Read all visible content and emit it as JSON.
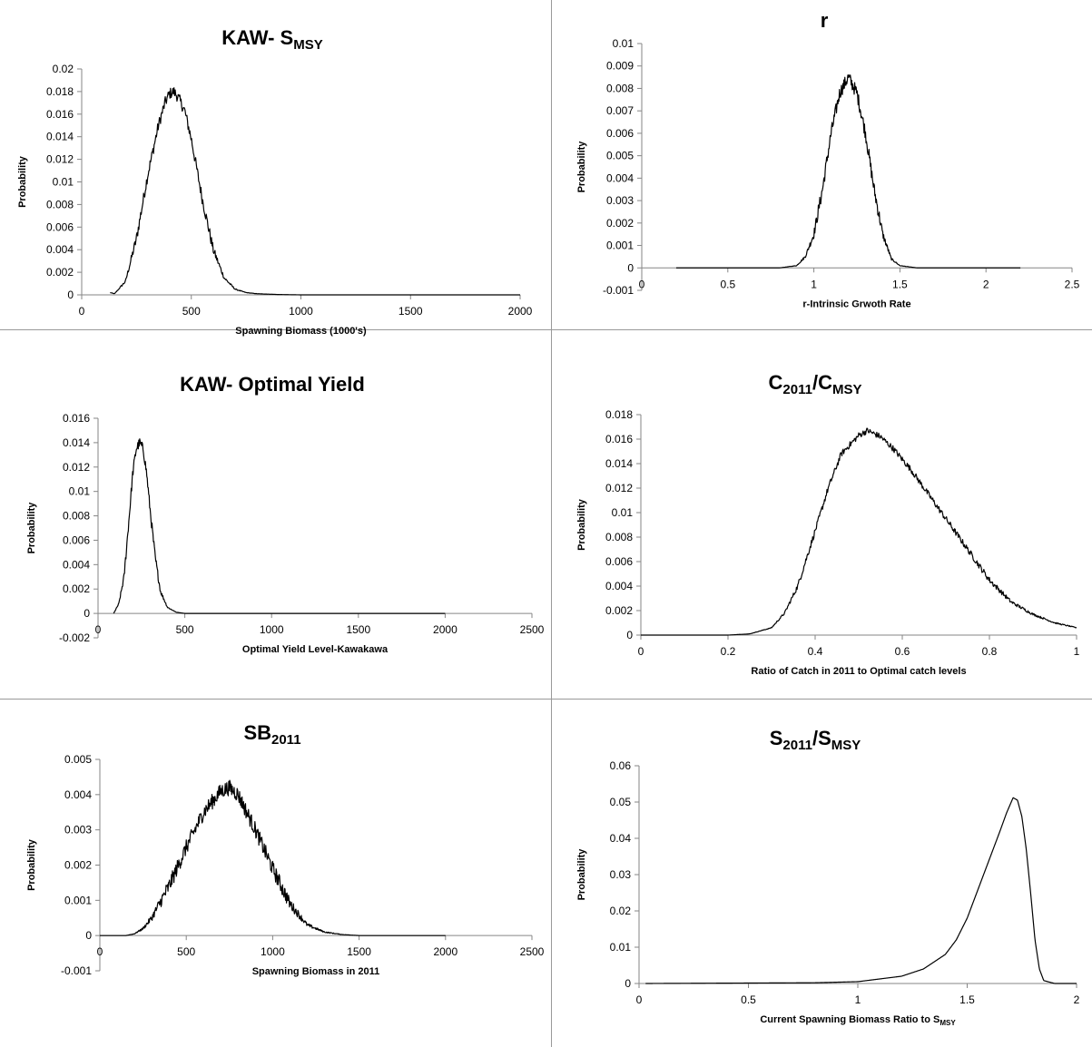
{
  "chart_data": [
    {
      "type": "line",
      "title": "KAW- S",
      "title_sub": "MSY",
      "xlabel": "Spawning Biomass (1000's)",
      "xlabel_sub": "",
      "ylabel": "Probability",
      "xlim": [
        0,
        2000
      ],
      "ylim": [
        0,
        0.02
      ],
      "xticks": [
        0,
        500,
        1000,
        1500,
        2000
      ],
      "yticks": [
        0,
        0.002,
        0.004,
        0.006,
        0.008,
        0.01,
        0.012,
        0.014,
        0.016,
        0.018,
        0.02
      ],
      "xtick_labels": [
        "0",
        "500",
        "1000",
        "1500",
        "2000"
      ],
      "ytick_labels": [
        "0",
        "0.002",
        "0.004",
        "0.006",
        "0.008",
        "0.01",
        "0.012",
        "0.014",
        "0.016",
        "0.018",
        "0.02"
      ],
      "noise": 0.0005,
      "series": [
        {
          "x": [
            130,
            150,
            200,
            250,
            300,
            350,
            380,
            400,
            420,
            440,
            470,
            500,
            550,
            600,
            650,
            700,
            750,
            800,
            900,
            1000,
            1200,
            1500,
            2000
          ],
          "y": [
            0.0002,
            0.0001,
            0.0012,
            0.005,
            0.0105,
            0.015,
            0.017,
            0.0178,
            0.018,
            0.0175,
            0.0163,
            0.0138,
            0.0085,
            0.004,
            0.0015,
            0.0005,
            0.0002,
            0.0001,
            3e-05,
            0,
            0,
            0,
            0
          ]
        }
      ]
    },
    {
      "type": "line",
      "title": "r",
      "title_sub": "",
      "xlabel": "r-Intrinsic Grwoth Rate",
      "xlabel_sub": "",
      "ylabel": "Probability",
      "xlim": [
        0,
        2.5
      ],
      "ylim": [
        -0.001,
        0.01
      ],
      "xticks": [
        0,
        0.5,
        1,
        1.5,
        2,
        2.5
      ],
      "yticks": [
        -0.001,
        0,
        0.001,
        0.002,
        0.003,
        0.004,
        0.005,
        0.006,
        0.007,
        0.008,
        0.009,
        0.01
      ],
      "xtick_labels": [
        "0",
        "0.5",
        "1",
        "1.5",
        "2",
        "2.5"
      ],
      "ytick_labels": [
        "-0.001",
        "0",
        "0.001",
        "0.002",
        "0.003",
        "0.004",
        "0.005",
        "0.006",
        "0.007",
        "0.008",
        "0.009",
        "0.01"
      ],
      "noise": 0.0003,
      "series": [
        {
          "x": [
            0.2,
            0.8,
            0.9,
            0.95,
            1.0,
            1.05,
            1.1,
            1.15,
            1.2,
            1.25,
            1.3,
            1.35,
            1.4,
            1.45,
            1.5,
            1.6,
            2.2
          ],
          "y": [
            0,
            0,
            0.0001,
            0.0005,
            0.0015,
            0.0035,
            0.006,
            0.0078,
            0.0085,
            0.0078,
            0.006,
            0.0035,
            0.0015,
            0.0004,
            0.0001,
            0,
            0
          ]
        }
      ]
    },
    {
      "type": "line",
      "title": "KAW- Optimal Yield",
      "title_sub": "",
      "xlabel": "Optimal Yield Level-Kawakawa",
      "xlabel_sub": "",
      "ylabel": "Probability",
      "xlim": [
        0,
        2500
      ],
      "ylim": [
        -0.002,
        0.016
      ],
      "xticks": [
        0,
        500,
        1000,
        1500,
        2000,
        2500
      ],
      "yticks": [
        -0.002,
        0,
        0.002,
        0.004,
        0.006,
        0.008,
        0.01,
        0.012,
        0.014,
        0.016
      ],
      "xtick_labels": [
        "0",
        "500",
        "1000",
        "1500",
        "2000",
        "2500"
      ],
      "ytick_labels": [
        "-0.002",
        "0",
        "0.002",
        "0.004",
        "0.006",
        "0.008",
        "0.01",
        "0.012",
        "0.014",
        "0.016"
      ],
      "noise": 0.0004,
      "series": [
        {
          "x": [
            90,
            120,
            150,
            180,
            200,
            220,
            240,
            260,
            280,
            300,
            330,
            360,
            400,
            450,
            500,
            600,
            2000
          ],
          "y": [
            0,
            0.0008,
            0.003,
            0.008,
            0.0115,
            0.0135,
            0.014,
            0.0135,
            0.0115,
            0.0085,
            0.0045,
            0.0018,
            0.0005,
            0.0001,
            0,
            0,
            0
          ]
        }
      ]
    },
    {
      "type": "line",
      "title": "C",
      "title_segments": [
        [
          "C",
          ""
        ],
        [
          "2011",
          "sub"
        ],
        [
          "/C",
          ""
        ],
        [
          "MSY",
          "sub"
        ]
      ],
      "xlabel": "Ratio of Catch in 2011 to Optimal catch levels",
      "xlabel_sub": "",
      "ylabel": "Probability",
      "xlim": [
        0,
        1
      ],
      "ylim": [
        0,
        0.018
      ],
      "xticks": [
        0,
        0.2,
        0.4,
        0.6,
        0.8,
        1
      ],
      "yticks": [
        0,
        0.002,
        0.004,
        0.006,
        0.008,
        0.01,
        0.012,
        0.014,
        0.016,
        0.018
      ],
      "xtick_labels": [
        "0",
        "0.2",
        "0.4",
        "0.6",
        "0.8",
        "1"
      ],
      "ytick_labels": [
        "0",
        "0.002",
        "0.004",
        "0.006",
        "0.008",
        "0.01",
        "0.012",
        "0.014",
        "0.016",
        "0.018"
      ],
      "noise": 0.00025,
      "series": [
        {
          "x": [
            0,
            0.2,
            0.25,
            0.3,
            0.33,
            0.36,
            0.4,
            0.43,
            0.46,
            0.5,
            0.52,
            0.55,
            0.58,
            0.62,
            0.66,
            0.7,
            0.75,
            0.8,
            0.85,
            0.9,
            0.95,
            1.0
          ],
          "y": [
            0,
            0,
            0.0001,
            0.0006,
            0.0018,
            0.004,
            0.0085,
            0.012,
            0.0148,
            0.0163,
            0.0167,
            0.0162,
            0.0152,
            0.0135,
            0.0115,
            0.0095,
            0.007,
            0.0045,
            0.0027,
            0.0017,
            0.001,
            0.0006
          ]
        }
      ]
    },
    {
      "type": "line",
      "title": "SB",
      "title_segments": [
        [
          "SB",
          ""
        ],
        [
          "2011",
          "sub"
        ]
      ],
      "xlabel": "Spawning Biomass in 2011",
      "xlabel_sub": "",
      "ylabel": "Probability",
      "xlim": [
        0,
        2500
      ],
      "ylim": [
        -0.001,
        0.005
      ],
      "xticks": [
        0,
        500,
        1000,
        1500,
        2000,
        2500
      ],
      "yticks": [
        -0.001,
        0,
        0.001,
        0.002,
        0.003,
        0.004,
        0.005
      ],
      "xtick_labels": [
        "0",
        "500",
        "1000",
        "1500",
        "2000",
        "2500"
      ],
      "ytick_labels": [
        "-0.001",
        "0",
        "0.001",
        "0.002",
        "0.003",
        "0.004",
        "0.005"
      ],
      "noise": 0.00022,
      "series": [
        {
          "x": [
            0,
            150,
            200,
            250,
            300,
            400,
            500,
            600,
            700,
            750,
            800,
            900,
            1000,
            1100,
            1200,
            1300,
            1400,
            1500,
            2000
          ],
          "y": [
            0,
            0,
            5e-05,
            0.0002,
            0.0005,
            0.0014,
            0.0025,
            0.0035,
            0.0041,
            0.0042,
            0.004,
            0.003,
            0.0019,
            0.0009,
            0.0003,
            0.0001,
            3e-05,
            0,
            0
          ]
        }
      ]
    },
    {
      "type": "line",
      "title": "S",
      "title_segments": [
        [
          "S",
          ""
        ],
        [
          "2011",
          "sub"
        ],
        [
          "/S",
          ""
        ],
        [
          "MSY",
          "sub"
        ]
      ],
      "xlabel": "Current Spawning Biomass Ratio to S",
      "xlabel_sub": "MSY",
      "ylabel": "Probability",
      "xlim": [
        0,
        2
      ],
      "ylim": [
        0,
        0.06
      ],
      "xticks": [
        0,
        0.5,
        1,
        1.5,
        2
      ],
      "yticks": [
        0,
        0.01,
        0.02,
        0.03,
        0.04,
        0.05,
        0.06
      ],
      "xtick_labels": [
        "0",
        "0.5",
        "1",
        "1.5",
        "2"
      ],
      "ytick_labels": [
        "0",
        "0.01",
        "0.02",
        "0.03",
        "0.04",
        "0.05",
        "0.06"
      ],
      "noise": 0,
      "series": [
        {
          "x": [
            0.03,
            0.8,
            1.0,
            1.2,
            1.3,
            1.4,
            1.45,
            1.5,
            1.55,
            1.6,
            1.65,
            1.68,
            1.71,
            1.73,
            1.75,
            1.77,
            1.79,
            1.81,
            1.83,
            1.85,
            1.9,
            2.0
          ],
          "y": [
            0,
            0.0002,
            0.0005,
            0.002,
            0.004,
            0.008,
            0.012,
            0.018,
            0.026,
            0.034,
            0.042,
            0.047,
            0.0512,
            0.0505,
            0.046,
            0.037,
            0.025,
            0.012,
            0.004,
            0.0008,
            0,
            0
          ]
        }
      ]
    }
  ]
}
